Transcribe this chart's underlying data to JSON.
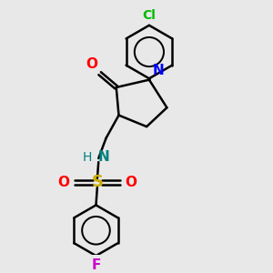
{
  "bg_color": "#e8e8e8",
  "bond_color": "#000000",
  "atom_colors": {
    "O": "#ff0000",
    "N_ring": "#0000ff",
    "N_amine": "#008080",
    "S": "#ccaa00",
    "Cl": "#00bb00",
    "F": "#cc00cc",
    "H": "#008080"
  },
  "font_size": 10,
  "bond_width": 1.8
}
